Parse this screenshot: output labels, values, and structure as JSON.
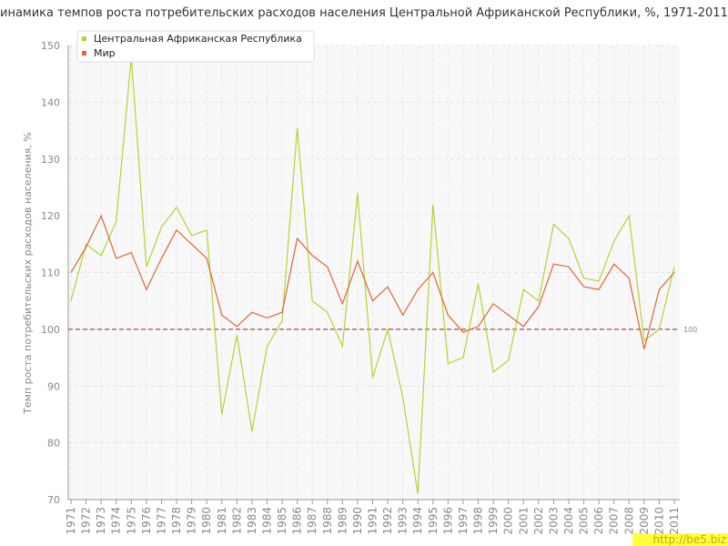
{
  "chart_data": {
    "type": "line",
    "title": "инамика темпов роста потребительских расходов населения Центральной Африканской Республики, %, 1971-2011",
    "y_label": "Темп роста потребительских расходов населения, %",
    "watermark": "http://be5.biz",
    "categories": [
      "1971",
      "1972",
      "1973",
      "1974",
      "1975",
      "1976",
      "1977",
      "1978",
      "1979",
      "1980",
      "1981",
      "1982",
      "1983",
      "1984",
      "1985",
      "1986",
      "1987",
      "1988",
      "1989",
      "1990",
      "1991",
      "1992",
      "1993",
      "1994",
      "1995",
      "1996",
      "1997",
      "1998",
      "1999",
      "2000",
      "2001",
      "2002",
      "2003",
      "2004",
      "2005",
      "2006",
      "2007",
      "2008",
      "2009",
      "2010",
      "2011"
    ],
    "series": [
      {
        "name": "Центральная Африканская Республика",
        "color": "#b5d334",
        "values": [
          105,
          115,
          113,
          119,
          148,
          111,
          118,
          121.5,
          116.5,
          117.5,
          85,
          99,
          82,
          97,
          101.5,
          135.5,
          105,
          103,
          97,
          124,
          91.5,
          100,
          88,
          71,
          122,
          94,
          95,
          108,
          92.5,
          94.5,
          107,
          105,
          118.5,
          116,
          109,
          108.5,
          115.5,
          120,
          98,
          100,
          111
        ]
      },
      {
        "name": "Мир",
        "color": "#d9683a",
        "values": [
          110,
          114.5,
          120,
          112.5,
          113.5,
          107,
          112.5,
          117.5,
          115,
          112.5,
          102.5,
          100.5,
          103,
          102,
          103,
          116,
          113,
          111,
          104.5,
          112,
          105,
          107.5,
          102.5,
          107,
          110,
          102.5,
          99.5,
          100.5,
          104.5,
          102.5,
          100.5,
          104,
          111.5,
          111,
          107.5,
          107,
          111.5,
          109,
          96.5,
          107,
          110
        ]
      }
    ],
    "reference_line": 100,
    "reference_color": "#a05050",
    "ylim": [
      70,
      150
    ],
    "yticks": [
      70,
      80,
      90,
      100,
      110,
      120,
      130,
      140,
      150
    ],
    "grid": true,
    "legend": "upper left"
  }
}
